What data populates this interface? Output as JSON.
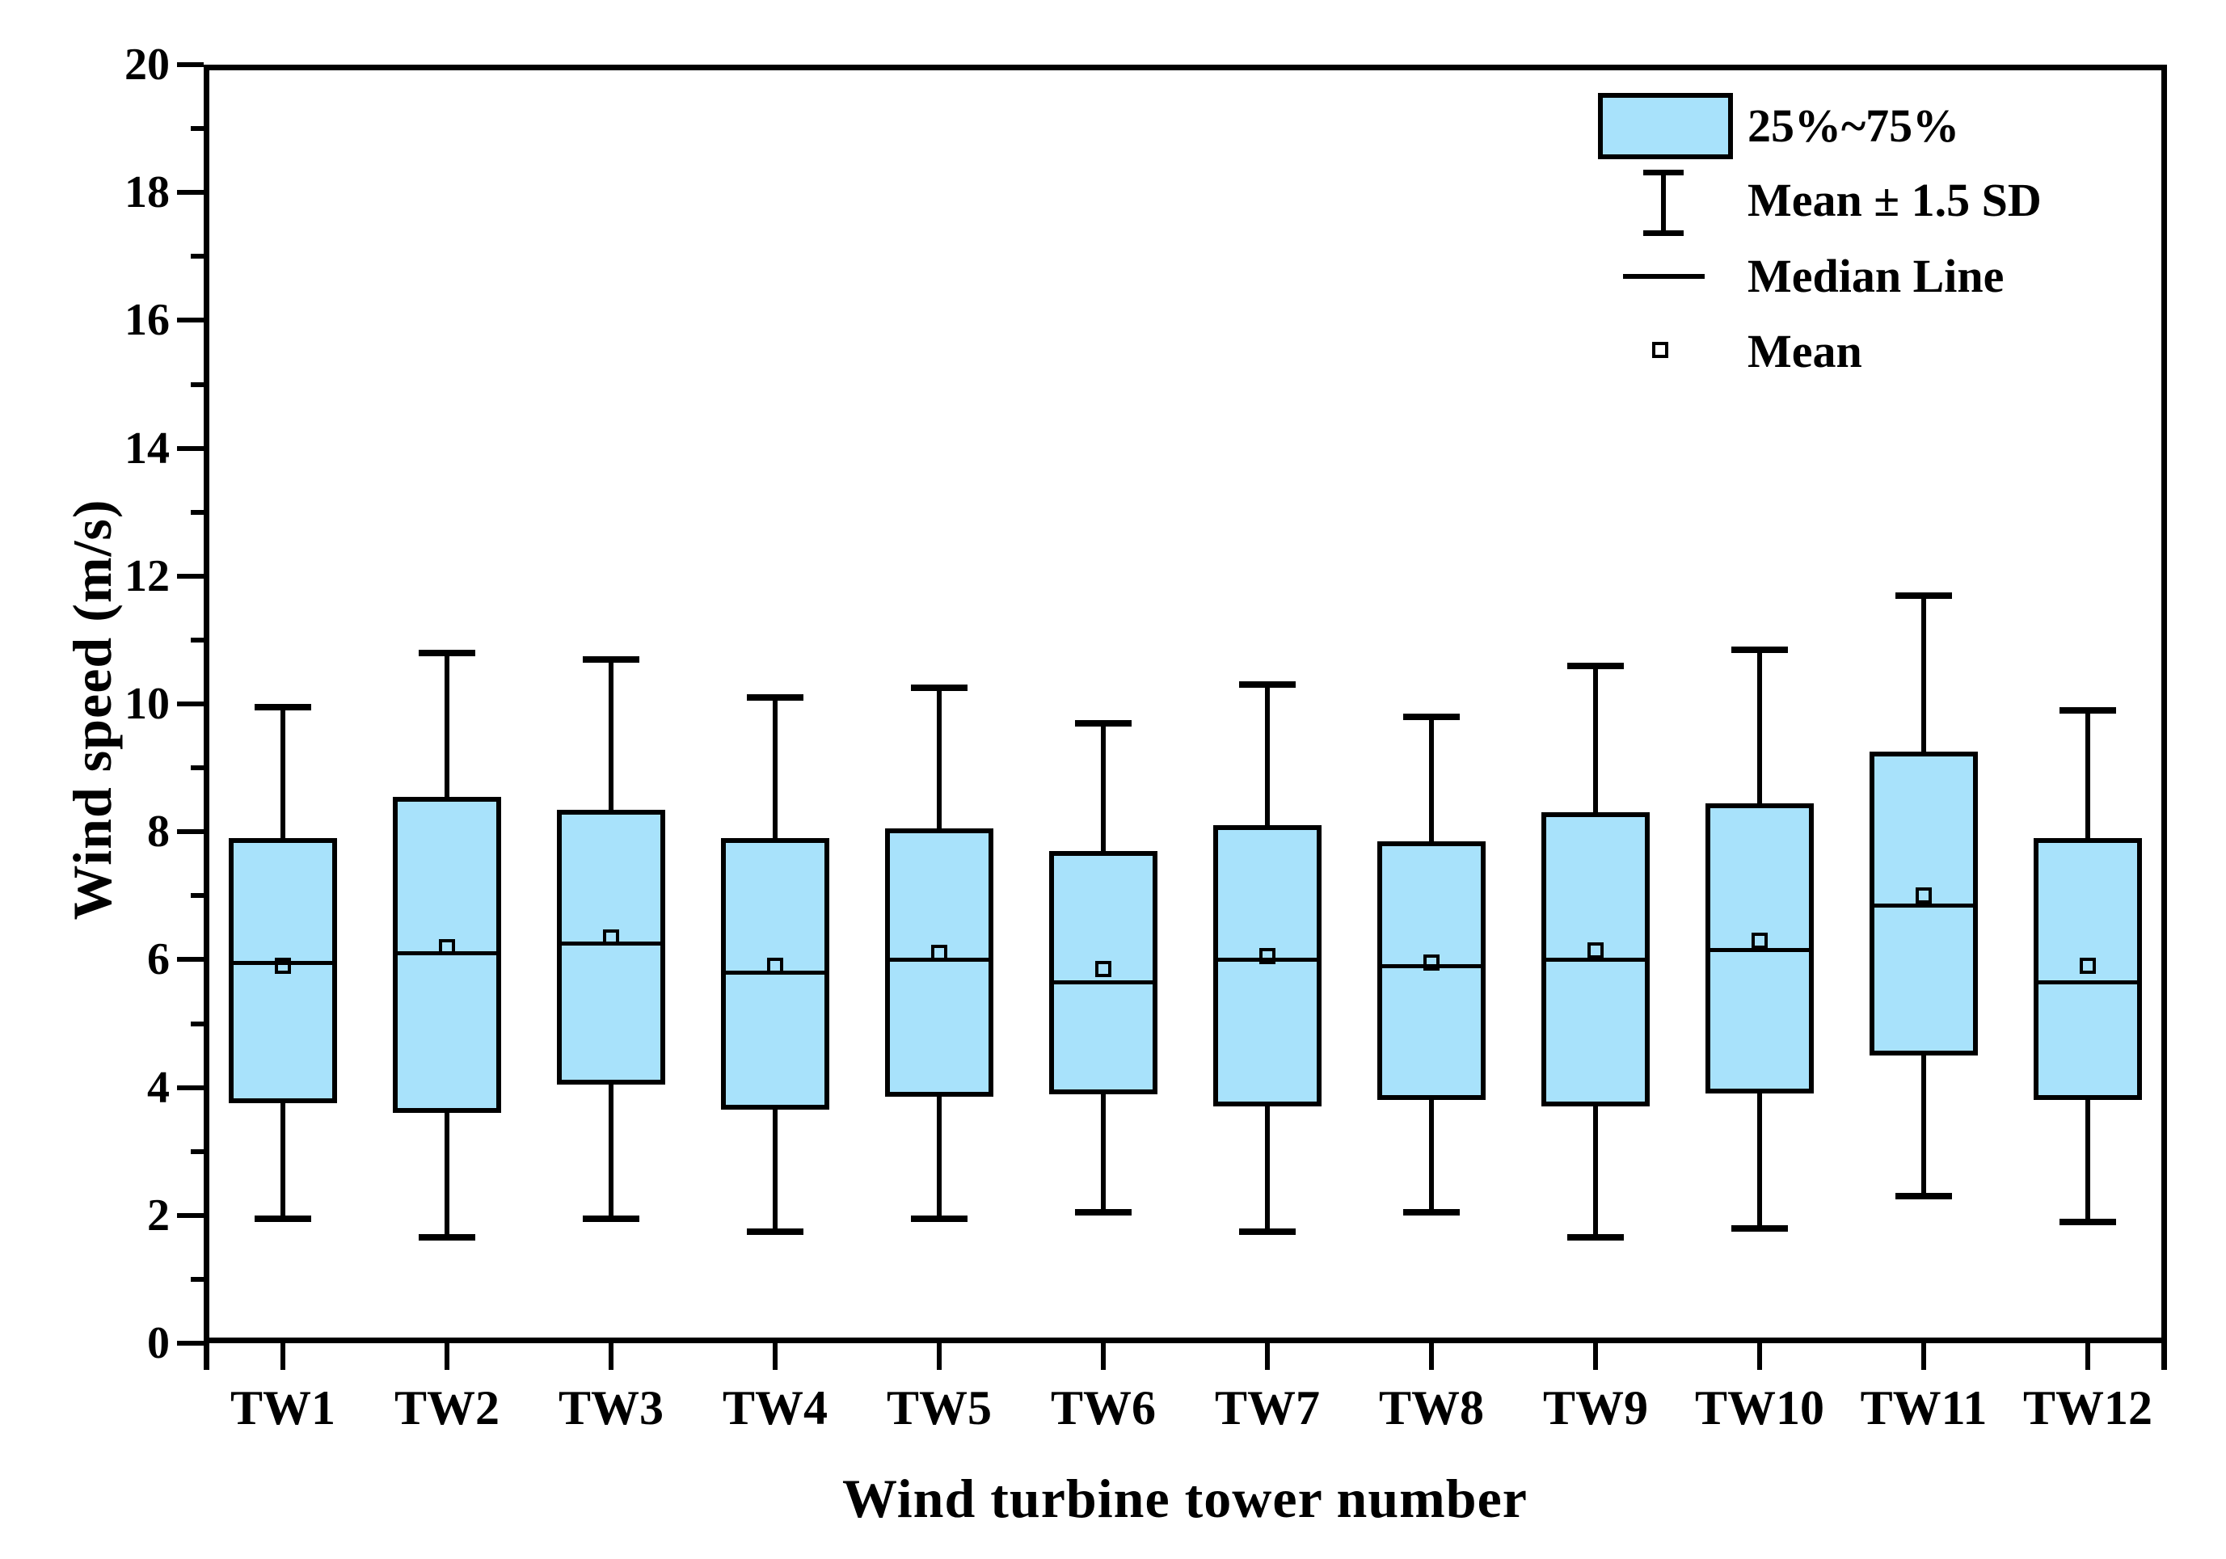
{
  "chart_data": {
    "type": "box",
    "title": "",
    "xlabel": "Wind turbine tower number",
    "ylabel": "Wind speed (m/s)",
    "ylim": [
      0,
      20
    ],
    "y_major_tick_step": 2,
    "y_minor_tick_step": 1,
    "y_tick_labels": [
      "0",
      "2",
      "4",
      "6",
      "8",
      "10",
      "12",
      "14",
      "16",
      "18",
      "20"
    ],
    "grid": false,
    "legend_position": "top-right-inside",
    "categories": [
      "TW1",
      "TW2",
      "TW3",
      "TW4",
      "TW5",
      "TW6",
      "TW7",
      "TW8",
      "TW9",
      "TW10",
      "TW11",
      "TW12"
    ],
    "series": [
      {
        "name": "TW1",
        "whisker_low": 1.95,
        "q1": 3.75,
        "median": 5.95,
        "mean": 5.9,
        "q3": 7.9,
        "whisker_high": 9.95
      },
      {
        "name": "TW2",
        "whisker_low": 1.65,
        "q1": 3.6,
        "median": 6.1,
        "mean": 6.2,
        "q3": 8.55,
        "whisker_high": 10.8
      },
      {
        "name": "TW3",
        "whisker_low": 1.95,
        "q1": 4.05,
        "median": 6.25,
        "mean": 6.35,
        "q3": 8.35,
        "whisker_high": 10.7
      },
      {
        "name": "TW4",
        "whisker_low": 1.75,
        "q1": 3.65,
        "median": 5.8,
        "mean": 5.9,
        "q3": 7.9,
        "whisker_high": 10.1
      },
      {
        "name": "TW5",
        "whisker_low": 1.95,
        "q1": 3.85,
        "median": 6.0,
        "mean": 6.1,
        "q3": 8.05,
        "whisker_high": 10.25
      },
      {
        "name": "TW6",
        "whisker_low": 2.05,
        "q1": 3.9,
        "median": 5.65,
        "mean": 5.85,
        "q3": 7.7,
        "whisker_high": 9.7
      },
      {
        "name": "TW7",
        "whisker_low": 1.75,
        "q1": 3.7,
        "median": 6.0,
        "mean": 6.05,
        "q3": 8.1,
        "whisker_high": 10.3
      },
      {
        "name": "TW8",
        "whisker_low": 2.05,
        "q1": 3.8,
        "median": 5.9,
        "mean": 5.95,
        "q3": 7.85,
        "whisker_high": 9.8
      },
      {
        "name": "TW9",
        "whisker_low": 1.65,
        "q1": 3.7,
        "median": 6.0,
        "mean": 6.15,
        "q3": 8.3,
        "whisker_high": 10.6
      },
      {
        "name": "TW10",
        "whisker_low": 1.8,
        "q1": 3.9,
        "median": 6.15,
        "mean": 6.3,
        "q3": 8.45,
        "whisker_high": 10.85
      },
      {
        "name": "TW11",
        "whisker_low": 2.3,
        "q1": 4.5,
        "median": 6.85,
        "mean": 7.0,
        "q3": 9.25,
        "whisker_high": 11.7
      },
      {
        "name": "TW12",
        "whisker_low": 1.9,
        "q1": 3.8,
        "median": 5.65,
        "mean": 5.9,
        "q3": 7.9,
        "whisker_high": 9.9
      }
    ],
    "legend": {
      "items": [
        {
          "glyph": "box-swatch",
          "label": "25%~75%"
        },
        {
          "glyph": "error-bar",
          "label": "Mean ± 1.5 SD"
        },
        {
          "glyph": "median-line",
          "label": "Median Line"
        },
        {
          "glyph": "mean-square",
          "label": "Mean"
        }
      ]
    },
    "colors": {
      "box_fill": "#A8E2FB",
      "line": "#000000",
      "background": "#FFFFFF"
    }
  }
}
